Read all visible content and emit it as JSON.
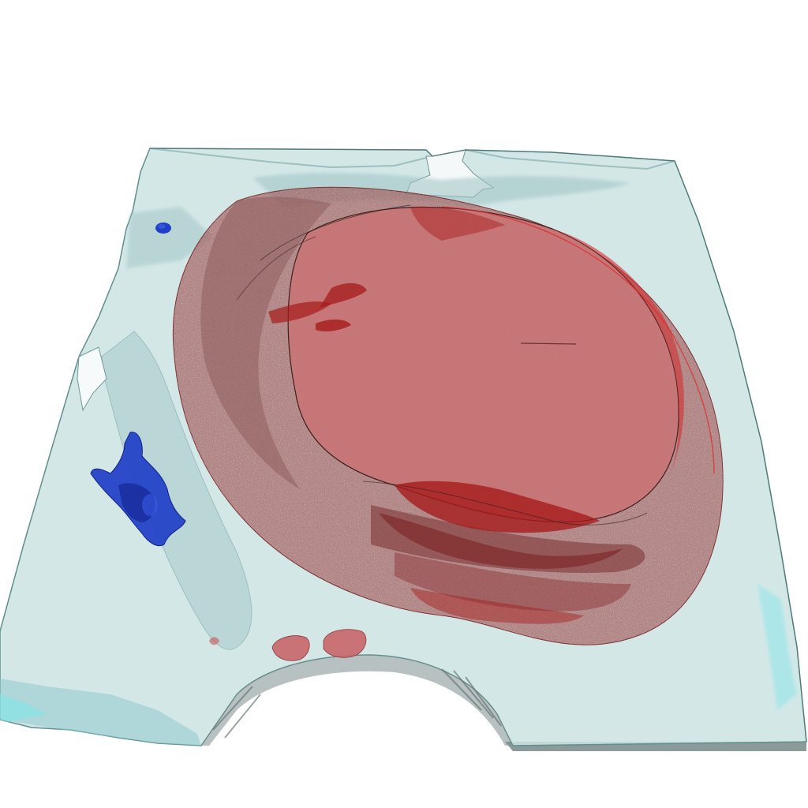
{
  "scene": {
    "background_color": "#ffffff",
    "tissue_slab": {
      "fill_color": "#cde3e3",
      "edge_color": "#5f8f8f",
      "highlight_color": "#7fe6ea",
      "shadow_color": "#9fc3c5",
      "opacity": 0.85
    },
    "red_region": {
      "outer_color": "#9b4a4a",
      "core_color": "#c97474",
      "dark_color": "#a61b1b",
      "speckle_color": "#c7a7a7"
    },
    "blue_region": {
      "color": "#1f3fc8",
      "dark_color": "#10208a"
    },
    "small_red_blobs": {
      "color": "#c9666a"
    }
  }
}
